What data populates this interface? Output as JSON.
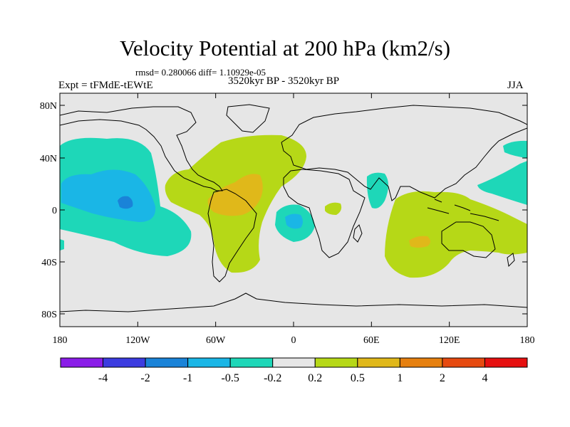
{
  "header": {
    "title": "Velocity Potential at 200 hPa (km2/s)",
    "stats": "rmsd= 0.280066 diff= 1.10929e-05",
    "expt": "Expt = tFMdE-tEWtE",
    "period": "3520kyr BP - 3520kyr BP",
    "season": "JJA"
  },
  "axes": {
    "y_labels": [
      "80N",
      "40N",
      "0",
      "40S",
      "80S"
    ],
    "x_labels": [
      "180",
      "120W",
      "60W",
      "0",
      "60E",
      "120E",
      "180"
    ]
  },
  "colorbar": {
    "colors": [
      "#8a1de8",
      "#3c3ce0",
      "#1a83d8",
      "#1ab6e6",
      "#1ed7b8",
      "#e6e6e6",
      "#b6d817",
      "#e0b81a",
      "#e6800f",
      "#e64a10",
      "#e61010"
    ],
    "labels": [
      "-4",
      "-2",
      "-1",
      "-0.5",
      "-0.2",
      "0.2",
      "0.5",
      "1",
      "2",
      "4"
    ]
  },
  "fill_colors": {
    "background": "#e6e6e6",
    "neg_light": "#1ed7b8",
    "neg_mid": "#1ab6e6",
    "neg_strong": "#1a83d8",
    "pos_light": "#b6d817",
    "pos_mid": "#e0b81a"
  }
}
